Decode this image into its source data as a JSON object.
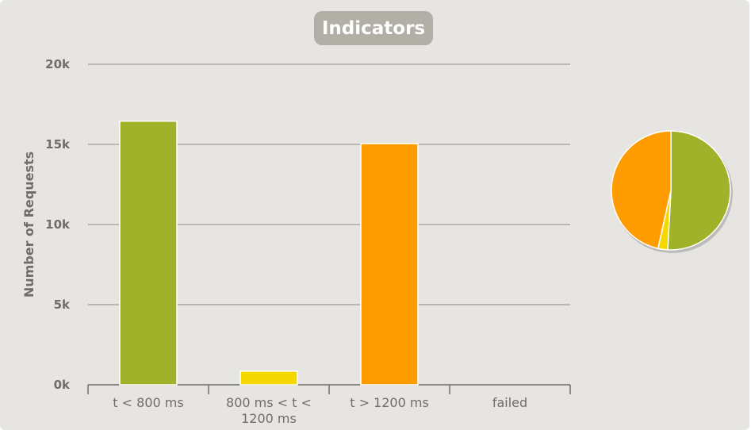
{
  "chart_data": {
    "type": "bar",
    "title": "Indicators",
    "ylabel": "Number of Requests",
    "xlabel": "",
    "ylim": [
      0,
      20000
    ],
    "yticks": [
      0,
      5000,
      10000,
      15000,
      20000
    ],
    "ytick_labels": [
      "0k",
      "5k",
      "10k",
      "15k",
      "20k"
    ],
    "categories": [
      "t < 800 ms",
      "800 ms < t < 1200 ms",
      "t > 1200 ms",
      "failed"
    ],
    "category_lines": [
      [
        "t < 800 ms"
      ],
      [
        "800 ms < t <",
        "1200 ms"
      ],
      [
        "t > 1200 ms"
      ],
      [
        "failed"
      ]
    ],
    "values": [
      16450,
      850,
      15050,
      0
    ],
    "colors": [
      "#a0b22a",
      "#f5d800",
      "#ff9d00",
      "#f15b4f"
    ],
    "grid": true,
    "pie": {
      "type": "pie",
      "values": [
        16450,
        850,
        15050,
        0
      ],
      "colors": [
        "#a0b22a",
        "#f5d800",
        "#ff9d00",
        "#f15b4f"
      ]
    }
  }
}
